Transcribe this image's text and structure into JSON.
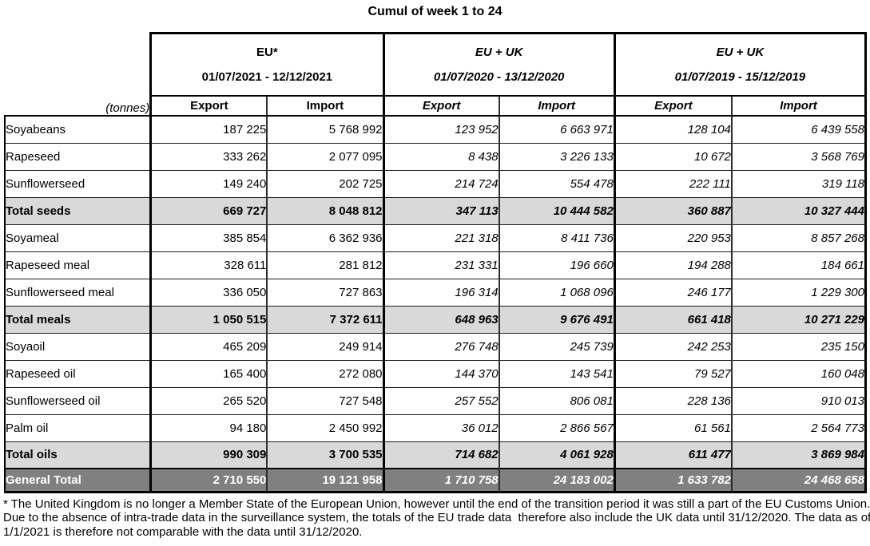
{
  "title": "Cumul of week 1 to 24",
  "unit_label": "(tonnes)",
  "column_groups": [
    {
      "name": "EU*",
      "period": "01/07/2021 - 12/12/2021",
      "italic": false,
      "columns": [
        "Export",
        "Import"
      ]
    },
    {
      "name": "EU + UK",
      "period": "01/07/2020 - 13/12/2020",
      "italic": true,
      "columns": [
        "Export",
        "Import"
      ]
    },
    {
      "name": "EU + UK",
      "period": "01/07/2019 - 15/12/2019",
      "italic": true,
      "columns": [
        "Export",
        "Import"
      ]
    }
  ],
  "rows": [
    {
      "label": "Soyabeans",
      "type": "data",
      "values": [
        "187 225",
        "5 768 992",
        "123 952",
        "6 663 971",
        "128 104",
        "6 439 558"
      ]
    },
    {
      "label": "Rapeseed",
      "type": "data",
      "values": [
        "333 262",
        "2 077 095",
        "8 438",
        "3 226 133",
        "10 672",
        "3 568 769"
      ]
    },
    {
      "label": "Sunflowerseed",
      "type": "data",
      "values": [
        "149 240",
        "202 725",
        "214 724",
        "554 478",
        "222 111",
        "319 118"
      ]
    },
    {
      "label": "Total seeds",
      "type": "subtotal",
      "values": [
        "669 727",
        "8 048 812",
        "347 113",
        "10 444 582",
        "360 887",
        "10 327 444"
      ]
    },
    {
      "label": "Soyameal",
      "type": "data",
      "values": [
        "385 854",
        "6 362 936",
        "221 318",
        "8 411 736",
        "220 953",
        "8 857 268"
      ]
    },
    {
      "label": "Rapeseed meal",
      "type": "data",
      "values": [
        "328 611",
        "281 812",
        "231 331",
        "196 660",
        "194 288",
        "184 661"
      ]
    },
    {
      "label": "Sunflowerseed meal",
      "type": "data",
      "values": [
        "336 050",
        "727 863",
        "196 314",
        "1 068 096",
        "246 177",
        "1 229 300"
      ]
    },
    {
      "label": "Total meals",
      "type": "subtotal",
      "values": [
        "1 050 515",
        "7 372 611",
        "648 963",
        "9 676 491",
        "661 418",
        "10 271 229"
      ]
    },
    {
      "label": "Soyaoil",
      "type": "data",
      "values": [
        "465 209",
        "249 914",
        "276 748",
        "245 739",
        "242 253",
        "235 150"
      ]
    },
    {
      "label": "Rapeseed oil",
      "type": "data",
      "values": [
        "165 400",
        "272 080",
        "144 370",
        "143 541",
        "79 527",
        "160 048"
      ]
    },
    {
      "label": "Sunflowerseed oil",
      "type": "data",
      "values": [
        "265 520",
        "727 548",
        "257 552",
        "806 081",
        "228 136",
        "910 013"
      ]
    },
    {
      "label": "Palm oil",
      "type": "data",
      "values": [
        "94 180",
        "2 450 992",
        "36 012",
        "2 866 567",
        "61 561",
        "2 564 773"
      ]
    },
    {
      "label": "Total oils",
      "type": "subtotal",
      "values": [
        "990 309",
        "3 700 535",
        "714 682",
        "4 061 928",
        "611 477",
        "3 869 984"
      ]
    },
    {
      "label": "General Total",
      "type": "grand_total",
      "values": [
        "2 710 550",
        "19 121 958",
        "1 710 758",
        "24 183 002",
        "1 633 782",
        "24 468 658"
      ]
    }
  ],
  "footnote": {
    "lines": [
      "* The United Kingdom is no longer a Member State of the European Union, however until the end of the transition period it was still a part of the EU Customs Union.",
      "Due to the absence of intra-trade data in the surveillance system, the totals of the EU trade data  therefore also include the UK data until 31/12/2020. The data as of",
      "1/1/2021 is therefore not comparable with the data until 31/12/2020."
    ]
  },
  "colors": {
    "subtotal_bg": "#d9d9d9",
    "grand_total_bg": "#808080",
    "grand_total_text": "#ffffff",
    "border": "#000000"
  }
}
